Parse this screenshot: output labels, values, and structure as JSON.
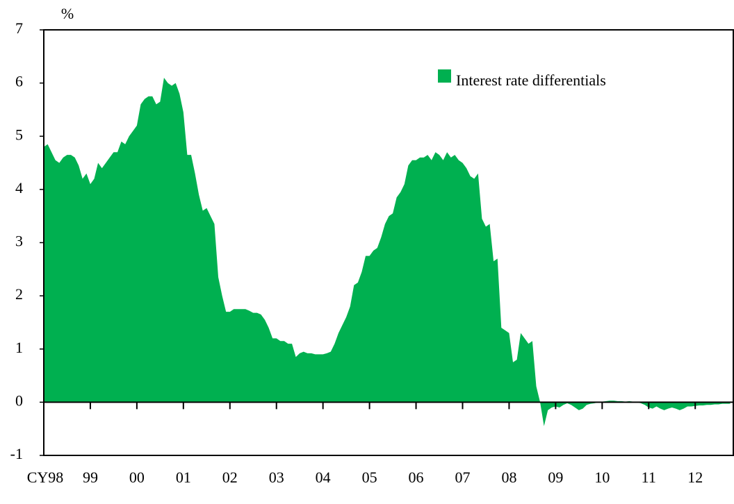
{
  "chart_data": {
    "type": "area",
    "y_label": "%",
    "series": [
      {
        "name": "Interest rate differentials",
        "color": "#00b050",
        "values": [
          4.8,
          4.85,
          4.7,
          4.55,
          4.5,
          4.6,
          4.65,
          4.65,
          4.6,
          4.45,
          4.2,
          4.3,
          4.1,
          4.2,
          4.5,
          4.4,
          4.5,
          4.6,
          4.7,
          4.7,
          4.9,
          4.85,
          5.0,
          5.1,
          5.2,
          5.6,
          5.7,
          5.75,
          5.75,
          5.6,
          5.65,
          6.1,
          6.0,
          5.95,
          6.0,
          5.8,
          5.45,
          4.65,
          4.65,
          4.3,
          3.9,
          3.6,
          3.65,
          3.5,
          3.35,
          2.35,
          2.0,
          1.7,
          1.7,
          1.75,
          1.75,
          1.75,
          1.75,
          1.72,
          1.68,
          1.68,
          1.65,
          1.55,
          1.4,
          1.2,
          1.2,
          1.15,
          1.15,
          1.1,
          1.1,
          0.85,
          0.92,
          0.95,
          0.92,
          0.92,
          0.9,
          0.9,
          0.9,
          0.92,
          0.95,
          1.1,
          1.3,
          1.45,
          1.6,
          1.8,
          2.2,
          2.25,
          2.45,
          2.75,
          2.75,
          2.85,
          2.9,
          3.1,
          3.35,
          3.5,
          3.55,
          3.85,
          3.95,
          4.1,
          4.45,
          4.55,
          4.55,
          4.6,
          4.6,
          4.65,
          4.55,
          4.7,
          4.65,
          4.55,
          4.7,
          4.6,
          4.65,
          4.55,
          4.5,
          4.4,
          4.25,
          4.2,
          4.3,
          3.45,
          3.3,
          3.35,
          2.65,
          2.7,
          1.4,
          1.35,
          1.3,
          0.75,
          0.8,
          1.3,
          1.2,
          1.1,
          1.15,
          0.3,
          0.0,
          -0.45,
          -0.15,
          -0.1,
          -0.08,
          -0.1,
          -0.05,
          -0.02,
          -0.05,
          -0.1,
          -0.15,
          -0.12,
          -0.05,
          -0.03,
          -0.02,
          0,
          0.01,
          0.02,
          0.03,
          0.03,
          0.02,
          0.02,
          0.01,
          0.02,
          0.01,
          0,
          -0.02,
          -0.05,
          -0.1,
          -0.12,
          -0.08,
          -0.12,
          -0.15,
          -0.12,
          -0.1,
          -0.12,
          -0.15,
          -0.12,
          -0.08,
          -0.08,
          -0.07,
          -0.06,
          -0.06,
          -0.05,
          -0.05,
          -0.04,
          -0.04,
          -0.03,
          -0.03,
          -0.03
        ]
      }
    ],
    "x": [
      0,
      1,
      2,
      3,
      4,
      5,
      6,
      7,
      8,
      9,
      10,
      11,
      12,
      13,
      14,
      15,
      16,
      17,
      18,
      19,
      20,
      21,
      22,
      23,
      24,
      25,
      26,
      27,
      28,
      29,
      30,
      31,
      32,
      33,
      34,
      35,
      36,
      37,
      38,
      39,
      40,
      41,
      42,
      43,
      44,
      45,
      46,
      47,
      48,
      49,
      50,
      51,
      52,
      53,
      54,
      55,
      56,
      57,
      58,
      59,
      60,
      61,
      62,
      63,
      64,
      65,
      66,
      67,
      68,
      69,
      70,
      71,
      72,
      73,
      74,
      75,
      76,
      77,
      78,
      79,
      80,
      81,
      82,
      83,
      84,
      85,
      86,
      87,
      88,
      89,
      90,
      91,
      92,
      93,
      94,
      95,
      96,
      97,
      98,
      99,
      100,
      101,
      102,
      103,
      104,
      105,
      106,
      107,
      108,
      109,
      110,
      111,
      112,
      113,
      114,
      115,
      116,
      117,
      118,
      119,
      120,
      121,
      122,
      123,
      124,
      125,
      126,
      127,
      128,
      129,
      130,
      131,
      132,
      133,
      134,
      135,
      136,
      137,
      138,
      139,
      140,
      141,
      142,
      143,
      144,
      145,
      146,
      147,
      148,
      149,
      150,
      151,
      152,
      153,
      154,
      155,
      156,
      157,
      158,
      159,
      160,
      161,
      162,
      163,
      164,
      165,
      166,
      167,
      168,
      169,
      170,
      171,
      172,
      173,
      174,
      175,
      176,
      177
    ],
    "xlim": [
      0,
      178
    ],
    "xticks": [
      {
        "value": 0,
        "label": "CY98"
      },
      {
        "value": 12,
        "label": "99"
      },
      {
        "value": 24,
        "label": "00"
      },
      {
        "value": 36,
        "label": "01"
      },
      {
        "value": 48,
        "label": "02"
      },
      {
        "value": 60,
        "label": "03"
      },
      {
        "value": 72,
        "label": "04"
      },
      {
        "value": 84,
        "label": "05"
      },
      {
        "value": 96,
        "label": "06"
      },
      {
        "value": 108,
        "label": "07"
      },
      {
        "value": 120,
        "label": "08"
      },
      {
        "value": 132,
        "label": "09"
      },
      {
        "value": 144,
        "label": "10"
      },
      {
        "value": 156,
        "label": "11"
      },
      {
        "value": 168,
        "label": "12"
      }
    ],
    "ylim": [
      -1,
      7
    ],
    "yticks": [
      -1,
      0,
      1,
      2,
      3,
      4,
      5,
      6,
      7
    ]
  }
}
